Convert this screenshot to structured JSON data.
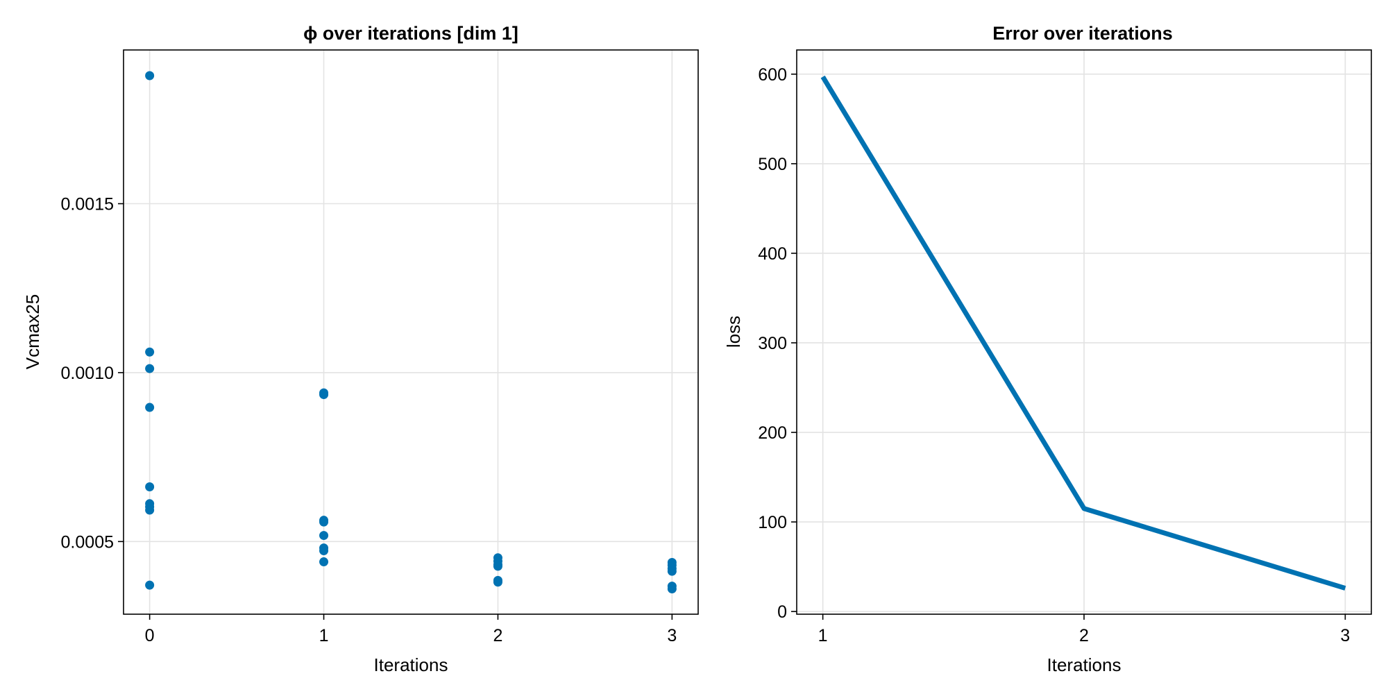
{
  "colors": {
    "series": "#0072b2",
    "grid": "#e3e3e3",
    "axis": "#000000"
  },
  "chart_data": [
    {
      "type": "scatter",
      "title": "ϕ over iterations [dim 1]",
      "xlabel": "Iterations",
      "ylabel": "Vcmax25",
      "xlim": [
        -0.15,
        3.15
      ],
      "ylim": [
        0.000285,
        0.001955
      ],
      "xticks": [
        0,
        1,
        2,
        3
      ],
      "xtick_labels": [
        "0",
        "1",
        "2",
        "3"
      ],
      "yticks": [
        0.0005,
        0.001,
        0.0015
      ],
      "ytick_labels": [
        "0.0005",
        "0.0010",
        "0.0015"
      ],
      "grid": true,
      "series": [
        {
          "points": [
            [
              0,
              0.001879
            ],
            [
              0,
              0.001061
            ],
            [
              0,
              0.001012
            ],
            [
              0,
              0.000897
            ],
            [
              0,
              0.000662
            ],
            [
              0,
              0.000612
            ],
            [
              0,
              0.000603
            ],
            [
              0,
              0.000593
            ],
            [
              0,
              0.000371
            ],
            [
              1,
              0.00094
            ],
            [
              1,
              0.000935
            ],
            [
              1,
              0.000563
            ],
            [
              1,
              0.000558
            ],
            [
              1,
              0.000518
            ],
            [
              1,
              0.000481
            ],
            [
              1,
              0.000473
            ],
            [
              1,
              0.00044
            ],
            [
              2,
              0.000452
            ],
            [
              2,
              0.000442
            ],
            [
              2,
              0.000432
            ],
            [
              2,
              0.000427
            ],
            [
              2,
              0.000385
            ],
            [
              2,
              0.00038
            ],
            [
              3,
              0.000438
            ],
            [
              3,
              0.00043
            ],
            [
              3,
              0.00042
            ],
            [
              3,
              0.000412
            ],
            [
              3,
              0.000368
            ],
            [
              3,
              0.00036
            ]
          ]
        }
      ]
    },
    {
      "type": "line",
      "title": "Error over iterations",
      "xlabel": "Iterations",
      "ylabel": "loss",
      "xlim": [
        0.9,
        3.1
      ],
      "ylim": [
        -3,
        627
      ],
      "xticks": [
        1,
        2,
        3
      ],
      "xtick_labels": [
        "1",
        "2",
        "3"
      ],
      "yticks": [
        0,
        100,
        200,
        300,
        400,
        500,
        600
      ],
      "ytick_labels": [
        "0",
        "100",
        "200",
        "300",
        "400",
        "500",
        "600"
      ],
      "grid": true,
      "series": [
        {
          "x": [
            1,
            2,
            3
          ],
          "y": [
            597,
            115,
            26
          ]
        }
      ]
    }
  ]
}
